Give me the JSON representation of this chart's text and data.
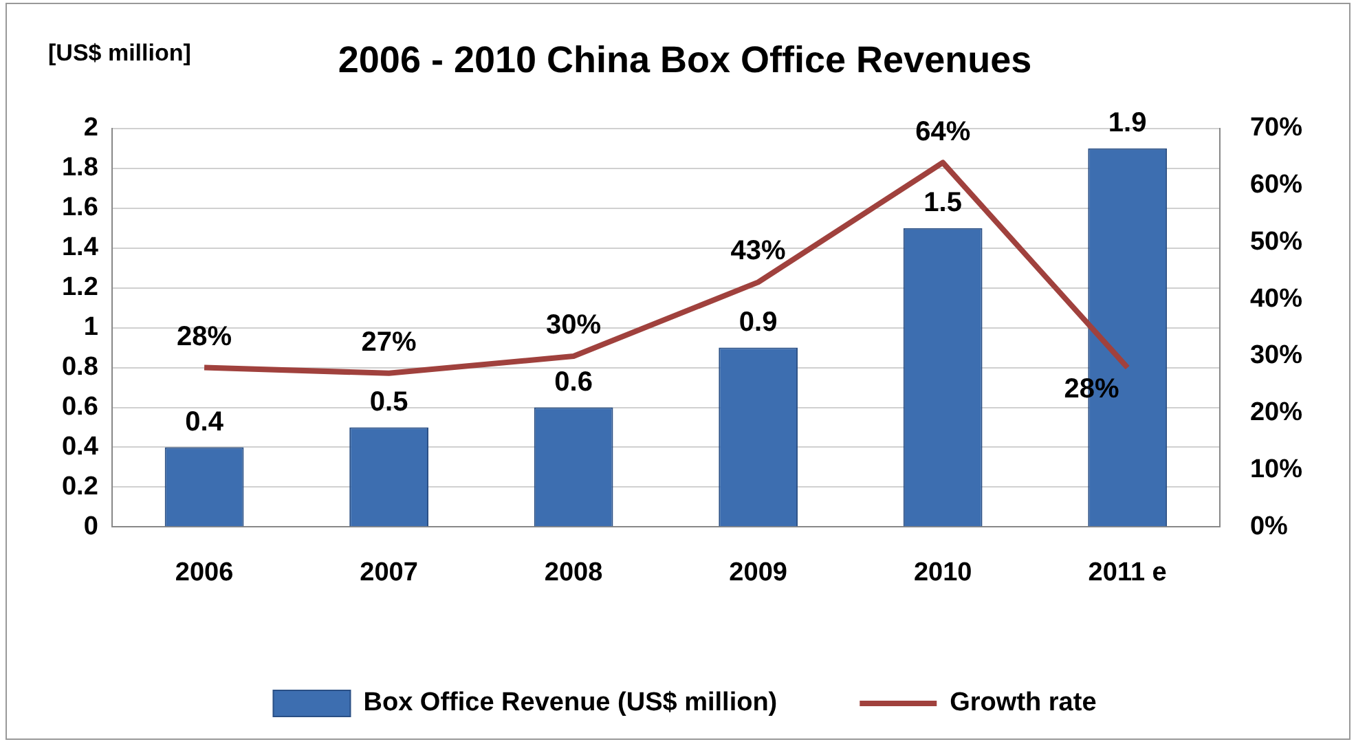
{
  "chart_data": {
    "type": "bar",
    "title": "2006 - 2010 China Box Office Revenues",
    "ylabel": "[US$ million]",
    "categories": [
      "2006",
      "2007",
      "2008",
      "2009",
      "2010",
      "2011 e"
    ],
    "series": [
      {
        "name": "Box Office Revenue (US$ million)",
        "color": "#3d6eb0",
        "values": [
          0.4,
          0.5,
          0.6,
          0.9,
          1.5,
          1.9
        ],
        "value_labels": [
          "0.4",
          "0.5",
          "0.6",
          "0.9",
          "1.5",
          "1.9"
        ]
      },
      {
        "name": "Growth rate",
        "type": "line",
        "axis": "y2",
        "color": "#a0413d",
        "values": [
          28,
          27,
          30,
          43,
          64,
          28
        ],
        "value_labels": [
          "28%",
          "27%",
          "30%",
          "43%",
          "64%",
          "28%"
        ]
      }
    ],
    "ylim": [
      0,
      2
    ],
    "yticks": [
      0,
      0.2,
      0.4,
      0.6,
      0.8,
      1,
      1.2,
      1.4,
      1.6,
      1.8,
      2
    ],
    "y2lim": [
      0,
      70
    ],
    "y2ticks": [
      {
        "value": 0,
        "label": "0%"
      },
      {
        "value": 10,
        "label": "10%"
      },
      {
        "value": 20,
        "label": "20%"
      },
      {
        "value": 30,
        "label": "30%"
      },
      {
        "value": 40,
        "label": "40%"
      },
      {
        "value": 50,
        "label": "50%"
      },
      {
        "value": 60,
        "label": "60%"
      },
      {
        "value": 70,
        "label": "70%"
      }
    ],
    "grid": "y",
    "legend": "bottom",
    "marker": "none",
    "line_style": "solid"
  }
}
